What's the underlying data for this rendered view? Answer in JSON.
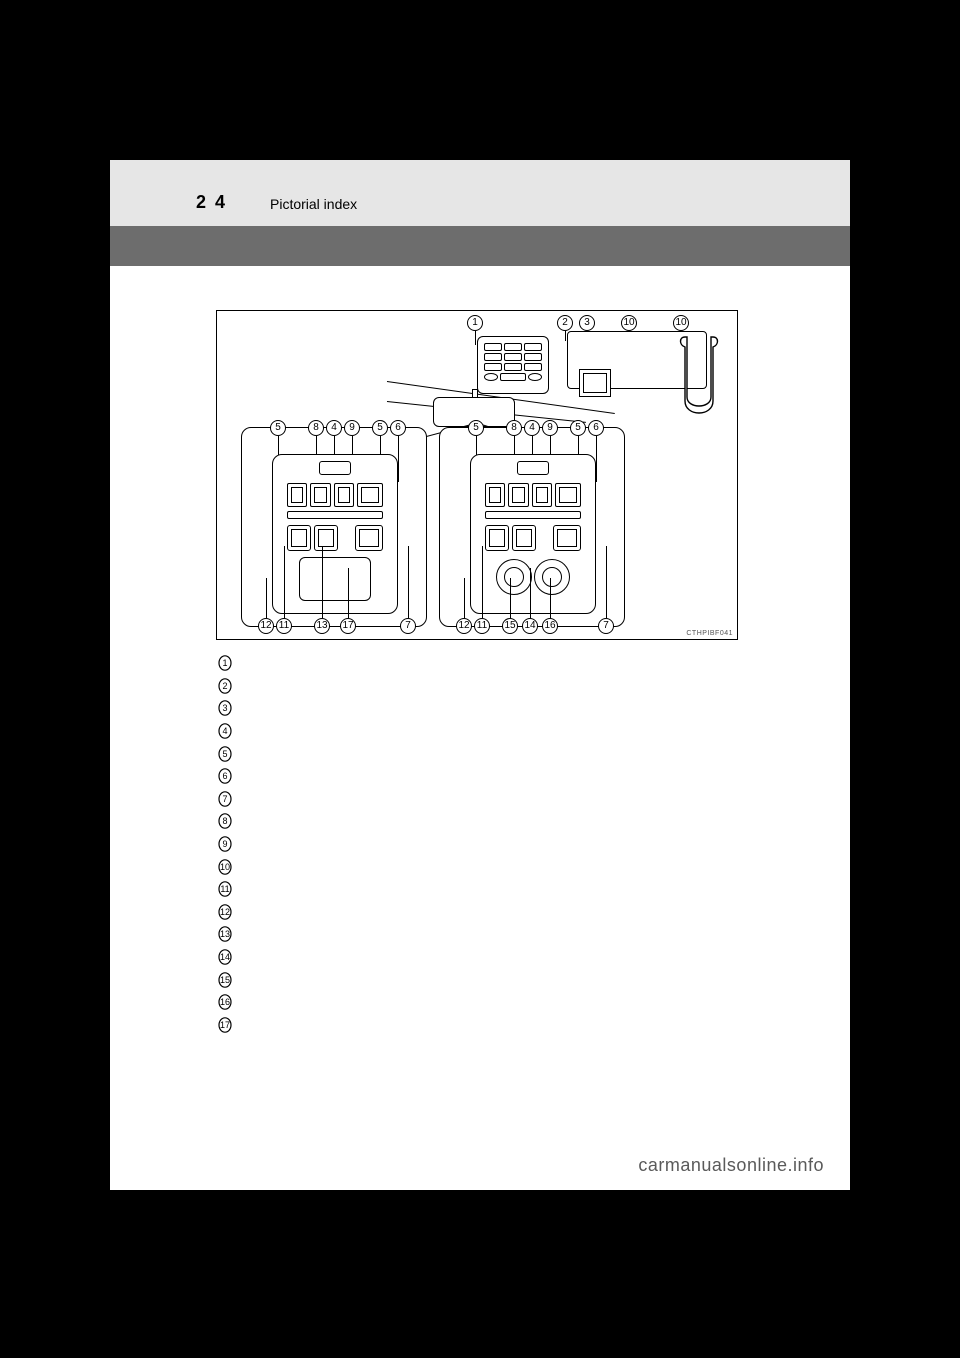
{
  "header": {
    "page_number": "2 4",
    "title": "Pictorial index"
  },
  "diagram": {
    "code": "CTHPIBF041",
    "top_callouts": [
      "1",
      "2",
      "3",
      "10",
      "10"
    ],
    "inset_top_callouts": [
      "5",
      "8",
      "4",
      "9",
      "5",
      "6"
    ],
    "inset_bottom_left": [
      "12",
      "11",
      "13",
      "17",
      "7"
    ],
    "inset_bottom_right": [
      "12",
      "11",
      "15",
      "14",
      "16",
      "7"
    ]
  },
  "list": {
    "items": [
      "1",
      "2",
      "3",
      "4",
      "5",
      "6",
      "7",
      "8",
      "9",
      "10",
      "11",
      "12",
      "13",
      "14",
      "15",
      "16",
      "17"
    ]
  },
  "footer": "carmanualsonline.info",
  "colors": {
    "page_bg": "#ffffff",
    "outer_bg": "#000000",
    "header_band": "#e6e6e6",
    "sub_band": "#6d6d6d",
    "line": "#000000",
    "footer_text": "#5a5a5a"
  }
}
